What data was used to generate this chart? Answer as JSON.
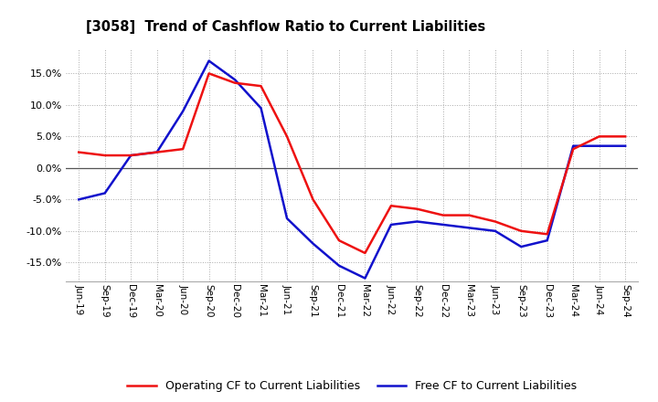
{
  "title": "[3058]  Trend of Cashflow Ratio to Current Liabilities",
  "x_labels": [
    "Jun-19",
    "Sep-19",
    "Dec-19",
    "Mar-20",
    "Jun-20",
    "Sep-20",
    "Dec-20",
    "Mar-21",
    "Jun-21",
    "Sep-21",
    "Dec-21",
    "Mar-22",
    "Jun-22",
    "Sep-22",
    "Dec-22",
    "Mar-23",
    "Jun-23",
    "Sep-23",
    "Dec-23",
    "Mar-24",
    "Jun-24",
    "Sep-24"
  ],
  "operating_cf": [
    2.5,
    2.0,
    2.0,
    2.5,
    3.0,
    15.0,
    13.5,
    13.0,
    5.0,
    -5.0,
    -11.5,
    -13.5,
    -6.0,
    -6.5,
    -7.5,
    -7.5,
    -8.5,
    -10.0,
    -10.5,
    3.0,
    5.0,
    5.0
  ],
  "free_cf": [
    -5.0,
    -4.0,
    2.0,
    2.5,
    9.0,
    17.0,
    14.0,
    9.5,
    -8.0,
    -12.0,
    -15.5,
    -17.5,
    -9.0,
    -8.5,
    -9.0,
    -9.5,
    -10.0,
    -12.5,
    -11.5,
    3.5,
    3.5,
    3.5
  ],
  "operating_color": "#ee1111",
  "free_color": "#1111cc",
  "ylim": [
    -18,
    19
  ],
  "yticks": [
    -15,
    -10,
    -5,
    0,
    5,
    10,
    15
  ],
  "bg_color": "#ffffff",
  "plot_bg_color": "#ffffff",
  "legend_labels": [
    "Operating CF to Current Liabilities",
    "Free CF to Current Liabilities"
  ],
  "linewidth": 1.8
}
